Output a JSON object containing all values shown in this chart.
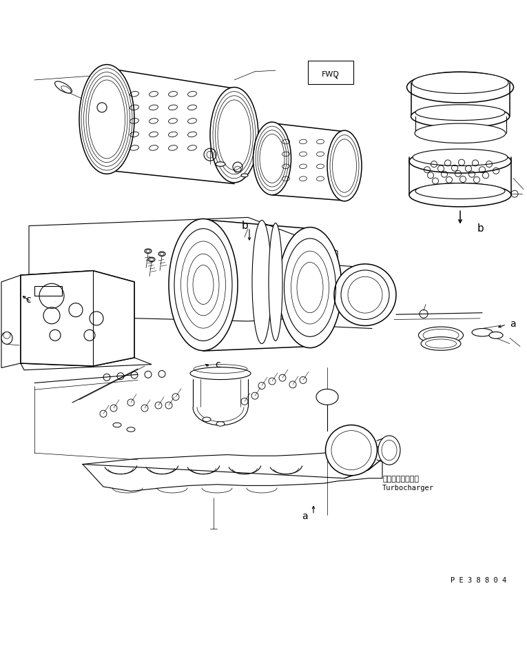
{
  "background_color": "#ffffff",
  "line_color": "#000000",
  "part_code": "P E 3 8 8 0 4",
  "figsize": [
    7.65,
    9.4
  ],
  "dpi": 100,
  "labels": {
    "fwd": "FWD",
    "b_top": "b",
    "b_right": "b",
    "c_left": "c",
    "c_mid": "c",
    "a_right": "a",
    "a_bottom": "a",
    "turbo_jp": "ターボチャージャ",
    "turbo_en": "Turbocharger"
  }
}
